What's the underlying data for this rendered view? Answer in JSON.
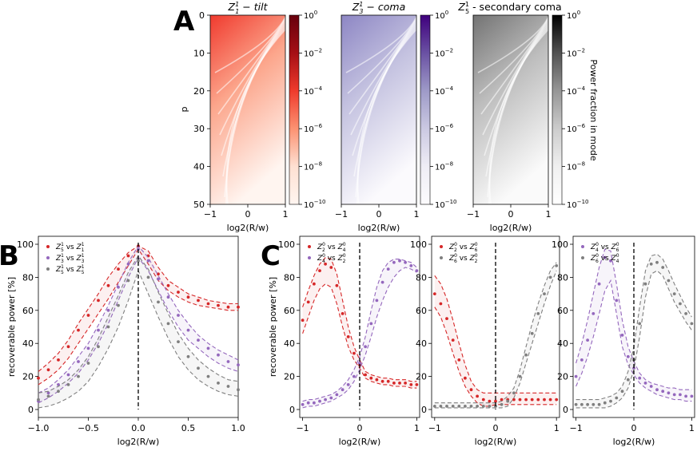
{
  "panel_labels": {
    "A": "A",
    "B": "B",
    "C": "C"
  },
  "colors": {
    "red": "#d62728",
    "purple": "#9467bd",
    "gray": "#7f7f7f"
  },
  "heatmaps": [
    {
      "title_math": "Z",
      "sup": "1",
      "sub": "1",
      "title_rest": " − tilt",
      "title_italic": true,
      "colormap": "reds",
      "colorbar_label": ""
    },
    {
      "title_math": "Z",
      "sup": "1",
      "sub": "3",
      "title_rest": " − coma",
      "title_italic": true,
      "colormap": "purples",
      "colorbar_label": ""
    },
    {
      "title_math": "Z",
      "sup": "1",
      "sub": "5",
      "title_rest": " - secondary coma",
      "title_italic": false,
      "colormap": "greys",
      "colorbar_label": "Power fraction in mode"
    }
  ],
  "heatmap_axes": {
    "ylabel": "p",
    "xlabel": "log2(R/w)",
    "xticks": [
      "−1",
      "0",
      "1"
    ],
    "yticks": [
      "0",
      "10",
      "20",
      "30",
      "40",
      "50"
    ],
    "colorbar_ticks": [
      {
        "base": "10",
        "exp": "0"
      },
      {
        "base": "10",
        "exp": "−2"
      },
      {
        "base": "10",
        "exp": "−4"
      },
      {
        "base": "10",
        "exp": "−6"
      },
      {
        "base": "10",
        "exp": "−8"
      },
      {
        "base": "10",
        "exp": "−10"
      }
    ]
  },
  "chart_data": [
    {
      "id": "B",
      "type": "line",
      "xlabel": "log2(R/w)",
      "ylabel": "recoverable power [%]",
      "xlim": [
        -1.0,
        1.0
      ],
      "ylim": [
        0,
        100
      ],
      "xticks": [
        "−1.0",
        "−0.5",
        "0.0",
        "0.5",
        "1.0"
      ],
      "yticks": [
        "0",
        "20",
        "40",
        "60",
        "80",
        "100"
      ],
      "vline_x": 0,
      "legend": [
        {
          "math": "Z",
          "a_sup": "1",
          "a_sub": "5",
          "mid": " vs ",
          "b_sup": "1",
          "b_sub": "1",
          "color": "red"
        },
        {
          "math": "Z",
          "a_sup": "1",
          "a_sub": "3",
          "mid": " vs ",
          "b_sup": "1",
          "b_sub": "3",
          "color": "purple"
        },
        {
          "math": "Z",
          "a_sup": "1",
          "a_sub": "5",
          "mid": " vs ",
          "b_sup": "1",
          "b_sub": "5",
          "color": "gray"
        }
      ],
      "series": [
        {
          "name": "Z5 vs Z1",
          "color": "red",
          "x": [
            -1,
            -0.9,
            -0.8,
            -0.7,
            -0.6,
            -0.5,
            -0.4,
            -0.3,
            -0.2,
            -0.1,
            0,
            0.1,
            0.2,
            0.3,
            0.4,
            0.5,
            0.6,
            0.7,
            0.8,
            0.9,
            1
          ],
          "points": [
            19,
            24,
            30,
            38,
            48,
            57,
            66,
            75,
            85,
            93,
            99,
            93,
            82,
            75,
            71,
            68,
            66,
            64,
            63,
            62,
            62
          ],
          "upper": [
            23,
            28,
            34,
            42,
            52,
            61,
            70,
            80,
            88,
            95,
            99,
            96,
            86,
            78,
            74,
            70,
            68,
            66,
            65,
            64,
            64
          ],
          "lower": [
            15,
            19,
            24,
            31,
            40,
            49,
            58,
            67,
            77,
            87,
            97,
            88,
            78,
            72,
            68,
            65,
            63,
            62,
            61,
            60,
            60
          ]
        },
        {
          "name": "Z3 vs Z3",
          "color": "purple",
          "x": [
            -1,
            -0.9,
            -0.8,
            -0.7,
            -0.6,
            -0.5,
            -0.4,
            -0.3,
            -0.2,
            -0.1,
            0,
            0.1,
            0.2,
            0.3,
            0.4,
            0.5,
            0.6,
            0.7,
            0.8,
            0.9,
            1
          ],
          "points": [
            5,
            10,
            15,
            21,
            29,
            37,
            48,
            60,
            74,
            88,
            97,
            90,
            79,
            68,
            57,
            48,
            42,
            37,
            33,
            29,
            27
          ],
          "upper": [
            10,
            13,
            18,
            24,
            32,
            40,
            51,
            63,
            76,
            89,
            99,
            92,
            81,
            70,
            60,
            52,
            45,
            40,
            36,
            33,
            30
          ],
          "lower": [
            4,
            7,
            11,
            16,
            22,
            30,
            40,
            52,
            66,
            80,
            92,
            84,
            72,
            60,
            50,
            42,
            37,
            32,
            28,
            25,
            23
          ]
        },
        {
          "name": "Z5 vs Z5",
          "color": "gray",
          "x": [
            -1,
            -0.9,
            -0.8,
            -0.7,
            -0.6,
            -0.5,
            -0.4,
            -0.3,
            -0.2,
            -0.1,
            0,
            0.1,
            0.2,
            0.3,
            0.4,
            0.5,
            0.6,
            0.7,
            0.8,
            0.9,
            1
          ],
          "points": [
            6,
            8,
            11,
            15,
            20,
            28,
            38,
            50,
            63,
            78,
            90,
            80,
            65,
            52,
            41,
            32,
            25,
            20,
            16,
            14,
            12
          ],
          "upper": [
            10,
            11,
            14,
            18,
            24,
            32,
            43,
            56,
            69,
            83,
            93,
            85,
            71,
            58,
            46,
            37,
            30,
            25,
            21,
            18,
            17
          ],
          "lower": [
            1,
            2,
            4,
            7,
            11,
            17,
            26,
            37,
            50,
            66,
            84,
            70,
            56,
            43,
            32,
            24,
            18,
            14,
            11,
            9,
            8
          ]
        }
      ]
    },
    {
      "id": "C1",
      "type": "line",
      "xlabel": "log2(R/w)",
      "ylabel": "recoverable power [%]",
      "xlim": [
        -1.05,
        1.05
      ],
      "ylim": [
        0,
        100
      ],
      "xticks": [
        "−1",
        "0",
        "1"
      ],
      "yticks": [
        "0",
        "20",
        "40",
        "60",
        "80",
        "100"
      ],
      "vline_x": 0,
      "legend": [
        {
          "math": "Z",
          "a_sup": "0",
          "a_sub": "2",
          "mid": " vs ",
          "b_sup": "0",
          "b_sub": "4",
          "color": "red"
        },
        {
          "math": "Z",
          "a_sup": "0",
          "a_sub": "4",
          "mid": " vs ",
          "b_sup": "0",
          "b_sub": "2",
          "color": "purple"
        }
      ],
      "series": [
        {
          "name": "Z2 vs Z4",
          "color": "red",
          "x": [
            -1,
            -0.9,
            -0.8,
            -0.7,
            -0.6,
            -0.5,
            -0.4,
            -0.3,
            -0.2,
            -0.1,
            0,
            0.1,
            0.2,
            0.3,
            0.4,
            0.5,
            0.6,
            0.7,
            0.8,
            0.9,
            1
          ],
          "points": [
            54,
            65,
            76,
            84,
            88,
            86,
            75,
            58,
            44,
            34,
            27,
            21,
            19,
            18,
            17,
            17,
            16,
            16,
            16,
            15,
            15
          ],
          "upper": [
            62,
            72,
            81,
            88,
            92,
            91,
            82,
            66,
            50,
            38,
            30,
            23,
            21,
            20,
            19,
            19,
            18,
            18,
            18,
            17,
            17
          ],
          "lower": [
            46,
            56,
            66,
            73,
            76,
            74,
            64,
            50,
            38,
            30,
            25,
            19,
            17,
            16,
            15,
            15,
            14,
            14,
            14,
            13,
            13
          ]
        },
        {
          "name": "Z4 vs Z2",
          "color": "purple",
          "x": [
            -1,
            -0.9,
            -0.8,
            -0.7,
            -0.6,
            -0.5,
            -0.4,
            -0.3,
            -0.2,
            -0.1,
            0,
            0.1,
            0.2,
            0.3,
            0.4,
            0.5,
            0.6,
            0.7,
            0.8,
            0.9,
            1
          ],
          "points": [
            3,
            4,
            4,
            5,
            6,
            7,
            9,
            12,
            15,
            20,
            28,
            38,
            52,
            66,
            77,
            85,
            89,
            90,
            89,
            87,
            84
          ],
          "upper": [
            5,
            6,
            6,
            7,
            8,
            9,
            11,
            14,
            18,
            24,
            32,
            44,
            60,
            74,
            84,
            89,
            91,
            91,
            90,
            89,
            86
          ],
          "lower": [
            1,
            2,
            2,
            3,
            4,
            5,
            7,
            9,
            12,
            17,
            24,
            33,
            44,
            56,
            66,
            74,
            80,
            84,
            86,
            85,
            83
          ]
        }
      ]
    },
    {
      "id": "C2",
      "type": "line",
      "xlabel": "log2(R/w)",
      "ylabel": "",
      "xlim": [
        -1.05,
        1.05
      ],
      "ylim": [
        0,
        100
      ],
      "xticks": [
        "−1",
        "0",
        "1"
      ],
      "yticks": [
        "0",
        "20",
        "40",
        "60",
        "80",
        "100"
      ],
      "vline_x": 0,
      "legend": [
        {
          "math": "Z",
          "a_sup": "0",
          "a_sub": "2",
          "mid": " vs ",
          "b_sup": "0",
          "b_sub": "6",
          "color": "red"
        },
        {
          "math": "Z",
          "a_sup": "0",
          "a_sub": "6",
          "mid": " vs ",
          "b_sup": "0",
          "b_sub": "2",
          "color": "gray"
        }
      ],
      "series": [
        {
          "name": "Z2 vs Z6",
          "color": "red",
          "x": [
            -1,
            -0.9,
            -0.8,
            -0.7,
            -0.6,
            -0.5,
            -0.4,
            -0.3,
            -0.2,
            -0.1,
            0,
            0.1,
            0.2,
            0.3,
            0.4,
            0.5,
            0.6,
            0.7,
            0.8,
            0.9,
            1
          ],
          "points": [
            70,
            64,
            55,
            42,
            30,
            19,
            12,
            8,
            6,
            5,
            5,
            6,
            6,
            6,
            6,
            6,
            6,
            6,
            6,
            6,
            6
          ],
          "upper": [
            81,
            76,
            67,
            54,
            40,
            27,
            17,
            12,
            10,
            10,
            10,
            10,
            10,
            10,
            10,
            10,
            10,
            10,
            10,
            10,
            10
          ],
          "lower": [
            62,
            56,
            46,
            34,
            23,
            14,
            8,
            4,
            2,
            2,
            3,
            3,
            3,
            3,
            3,
            3,
            3,
            3,
            3,
            3,
            3
          ]
        },
        {
          "name": "Z6 vs Z2",
          "color": "gray",
          "x": [
            -1,
            -0.9,
            -0.8,
            -0.7,
            -0.6,
            -0.5,
            -0.4,
            -0.3,
            -0.2,
            -0.1,
            0,
            0.1,
            0.2,
            0.3,
            0.4,
            0.5,
            0.6,
            0.7,
            0.8,
            0.9,
            1
          ],
          "points": [
            2,
            2,
            2,
            2,
            2,
            2,
            2,
            2,
            2,
            2,
            2,
            3,
            5,
            10,
            20,
            33,
            46,
            58,
            70,
            80,
            87
          ],
          "upper": [
            4,
            4,
            4,
            4,
            4,
            4,
            4,
            4,
            4,
            4,
            4,
            5,
            8,
            13,
            24,
            38,
            52,
            64,
            75,
            84,
            89
          ],
          "lower": [
            1,
            1,
            1,
            1,
            1,
            1,
            1,
            1,
            1,
            1,
            1,
            1,
            2,
            7,
            16,
            28,
            40,
            52,
            64,
            75,
            84
          ]
        }
      ]
    },
    {
      "id": "C3",
      "type": "line",
      "xlabel": "log2(R/w)",
      "ylabel": "",
      "xlim": [
        -1.05,
        1.05
      ],
      "ylim": [
        0,
        100
      ],
      "xticks": [
        "−1",
        "0",
        "1"
      ],
      "yticks": [
        "0",
        "20",
        "40",
        "60",
        "80",
        "100"
      ],
      "vline_x": 0,
      "legend": [
        {
          "math": "Z",
          "a_sup": "0",
          "a_sub": "4",
          "mid": " vs ",
          "b_sup": "0",
          "b_sub": "6",
          "color": "purple"
        },
        {
          "math": "Z",
          "a_sup": "0",
          "a_sub": "6",
          "mid": " vs ",
          "b_sup": "0",
          "b_sub": "4",
          "color": "gray"
        }
      ],
      "series": [
        {
          "name": "Z4 vs Z6",
          "color": "purple",
          "x": [
            -1,
            -0.9,
            -0.8,
            -0.7,
            -0.6,
            -0.5,
            -0.4,
            -0.3,
            -0.2,
            -0.1,
            0,
            0.1,
            0.2,
            0.3,
            0.4,
            0.5,
            0.6,
            0.7,
            0.8,
            0.9,
            1
          ],
          "points": [
            20,
            30,
            42,
            58,
            76,
            92,
            90,
            66,
            45,
            32,
            25,
            19,
            16,
            14,
            12,
            11,
            10,
            9,
            9,
            8,
            8
          ],
          "upper": [
            28,
            40,
            54,
            70,
            86,
            97,
            96,
            76,
            54,
            38,
            29,
            22,
            18,
            16,
            15,
            14,
            13,
            13,
            12,
            12,
            12
          ],
          "lower": [
            14,
            22,
            32,
            44,
            58,
            72,
            78,
            58,
            38,
            27,
            21,
            16,
            13,
            11,
            9,
            8,
            7,
            6,
            6,
            5,
            5
          ]
        },
        {
          "name": "Z6 vs Z4",
          "color": "gray",
          "x": [
            -1,
            -0.9,
            -0.8,
            -0.7,
            -0.6,
            -0.5,
            -0.4,
            -0.3,
            -0.2,
            -0.1,
            0,
            0.1,
            0.2,
            0.3,
            0.4,
            0.5,
            0.6,
            0.7,
            0.8,
            0.9,
            1
          ],
          "points": [
            3,
            3,
            3,
            3,
            3,
            4,
            5,
            7,
            11,
            18,
            30,
            52,
            76,
            88,
            89,
            86,
            78,
            70,
            64,
            58,
            52
          ],
          "upper": [
            6,
            6,
            6,
            6,
            6,
            7,
            8,
            10,
            14,
            23,
            38,
            62,
            84,
            93,
            94,
            91,
            84,
            76,
            69,
            62,
            56
          ],
          "lower": [
            1,
            1,
            1,
            1,
            1,
            1,
            2,
            4,
            7,
            13,
            24,
            44,
            68,
            82,
            84,
            81,
            73,
            65,
            59,
            53,
            48
          ]
        }
      ]
    }
  ]
}
